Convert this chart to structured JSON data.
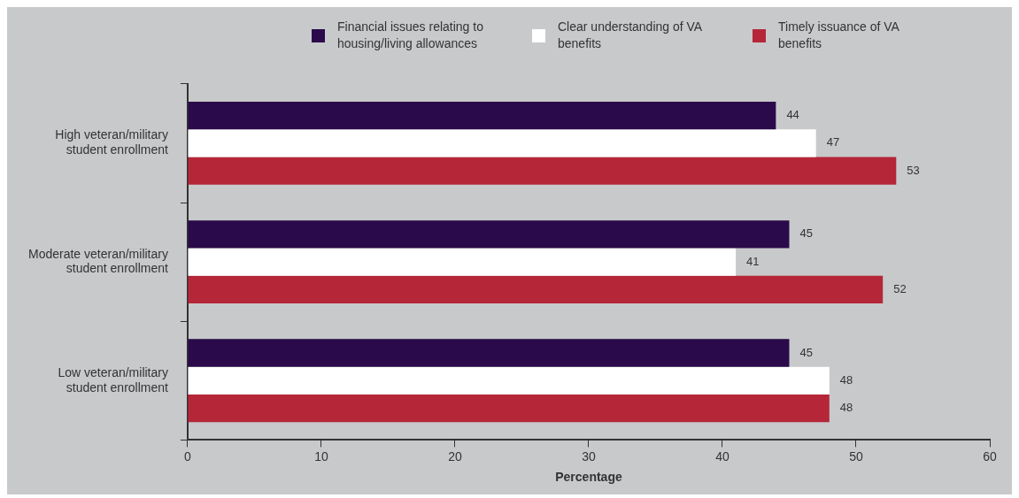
{
  "chart_data": {
    "type": "bar",
    "orientation": "horizontal",
    "xlabel": "Percentage",
    "categories": [
      "High veteran/military student enrollment",
      "Moderate veteran/military student enrollment",
      "Low veteran/military student enrollment"
    ],
    "series": [
      {
        "name": "Financial issues relating to housing/living allowances",
        "color": "#2a0a4a",
        "values": [
          44,
          45,
          45
        ]
      },
      {
        "name": "Clear understanding of VA benefits",
        "color": "#ffffff",
        "values": [
          47,
          41,
          48
        ]
      },
      {
        "name": "Timely issuance of VA benefits",
        "color": "#b52638",
        "values": [
          53,
          52,
          48
        ]
      }
    ],
    "xlim": [
      0,
      60
    ],
    "xticks": [
      0,
      10,
      20,
      30,
      40,
      50,
      60
    ],
    "grid": false,
    "legend": "top",
    "data_labels": true
  }
}
